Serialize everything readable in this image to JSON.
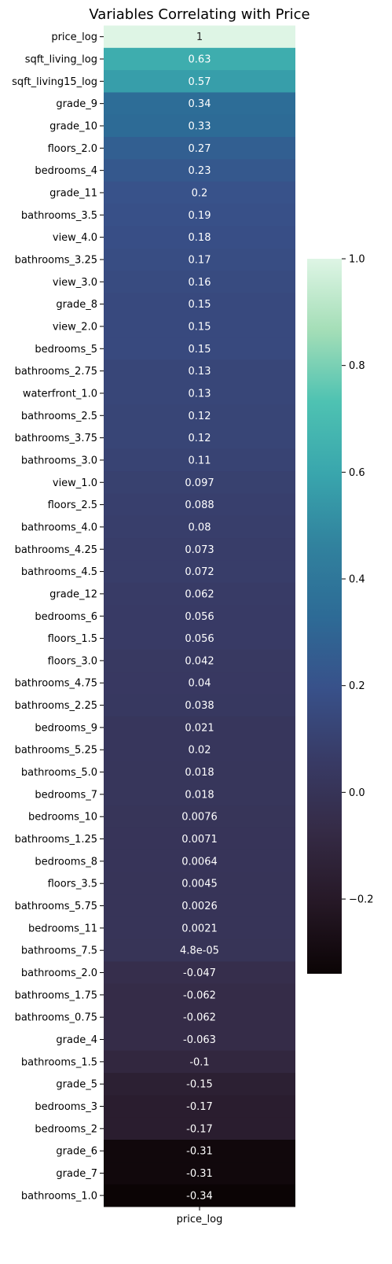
{
  "chart_data": {
    "type": "heatmap",
    "title": "Variables Correlating with Price",
    "column_labels": [
      "price_log"
    ],
    "row_labels": [
      "price_log",
      "sqft_living_log",
      "sqft_living15_log",
      "grade_9",
      "grade_10",
      "floors_2.0",
      "bedrooms_4",
      "grade_11",
      "bathrooms_3.5",
      "view_4.0",
      "bathrooms_3.25",
      "view_3.0",
      "grade_8",
      "view_2.0",
      "bedrooms_5",
      "bathrooms_2.75",
      "waterfront_1.0",
      "bathrooms_2.5",
      "bathrooms_3.75",
      "bathrooms_3.0",
      "view_1.0",
      "floors_2.5",
      "bathrooms_4.0",
      "bathrooms_4.25",
      "bathrooms_4.5",
      "grade_12",
      "bedrooms_6",
      "floors_1.5",
      "floors_3.0",
      "bathrooms_4.75",
      "bathrooms_2.25",
      "bedrooms_9",
      "bathrooms_5.25",
      "bathrooms_5.0",
      "bedrooms_7",
      "bedrooms_10",
      "bathrooms_1.25",
      "bedrooms_8",
      "floors_3.5",
      "bathrooms_5.75",
      "bedrooms_11",
      "bathrooms_7.5",
      "bathrooms_2.0",
      "bathrooms_1.75",
      "bathrooms_0.75",
      "grade_4",
      "bathrooms_1.5",
      "grade_5",
      "bedrooms_3",
      "bedrooms_2",
      "grade_6",
      "grade_7",
      "bathrooms_1.0"
    ],
    "values": [
      1,
      0.63,
      0.57,
      0.34,
      0.33,
      0.27,
      0.23,
      0.2,
      0.19,
      0.18,
      0.17,
      0.16,
      0.15,
      0.15,
      0.15,
      0.13,
      0.13,
      0.12,
      0.12,
      0.11,
      0.097,
      0.088,
      0.08,
      0.073,
      0.072,
      0.062,
      0.056,
      0.056,
      0.042,
      0.04,
      0.038,
      0.021,
      0.02,
      0.018,
      0.018,
      0.0076,
      0.0071,
      0.0064,
      0.0045,
      0.0026,
      0.0021,
      4.8e-05,
      -0.047,
      -0.062,
      -0.062,
      -0.063,
      -0.1,
      -0.15,
      -0.17,
      -0.17,
      -0.31,
      -0.31,
      -0.34
    ],
    "cell_labels": [
      "1",
      "0.63",
      "0.57",
      "0.34",
      "0.33",
      "0.27",
      "0.23",
      "0.2",
      "0.19",
      "0.18",
      "0.17",
      "0.16",
      "0.15",
      "0.15",
      "0.15",
      "0.13",
      "0.13",
      "0.12",
      "0.12",
      "0.11",
      "0.097",
      "0.088",
      "0.08",
      "0.073",
      "0.072",
      "0.062",
      "0.056",
      "0.056",
      "0.042",
      "0.04",
      "0.038",
      "0.021",
      "0.02",
      "0.018",
      "0.018",
      "0.0076",
      "0.0071",
      "0.0064",
      "0.0045",
      "0.0026",
      "0.0021",
      "4.8e-05",
      "-0.047",
      "-0.062",
      "-0.062",
      "-0.063",
      "-0.1",
      "-0.15",
      "-0.17",
      "-0.17",
      "-0.31",
      "-0.31",
      "-0.34"
    ],
    "colormap": "mako",
    "colorbar": {
      "range": [
        -0.34,
        1.0
      ],
      "ticks": [
        1.0,
        0.8,
        0.6,
        0.4,
        0.2,
        0.0,
        -0.2
      ],
      "tick_labels": [
        "1.0",
        "0.8",
        "0.6",
        "0.4",
        "0.2",
        "0.0",
        "−0.2"
      ]
    },
    "colormap_stops": [
      [
        0.0,
        "#0b0405"
      ],
      [
        0.1,
        "#261826"
      ],
      [
        0.2,
        "#352b46"
      ],
      [
        0.3,
        "#383b66"
      ],
      [
        0.4,
        "#38518a"
      ],
      [
        0.5,
        "#2d6b96"
      ],
      [
        0.6,
        "#31829e"
      ],
      [
        0.7,
        "#39a6ad"
      ],
      [
        0.8,
        "#4ec2b2"
      ],
      [
        0.9,
        "#a4deb7"
      ],
      [
        1.0,
        "#def5e5"
      ]
    ]
  }
}
